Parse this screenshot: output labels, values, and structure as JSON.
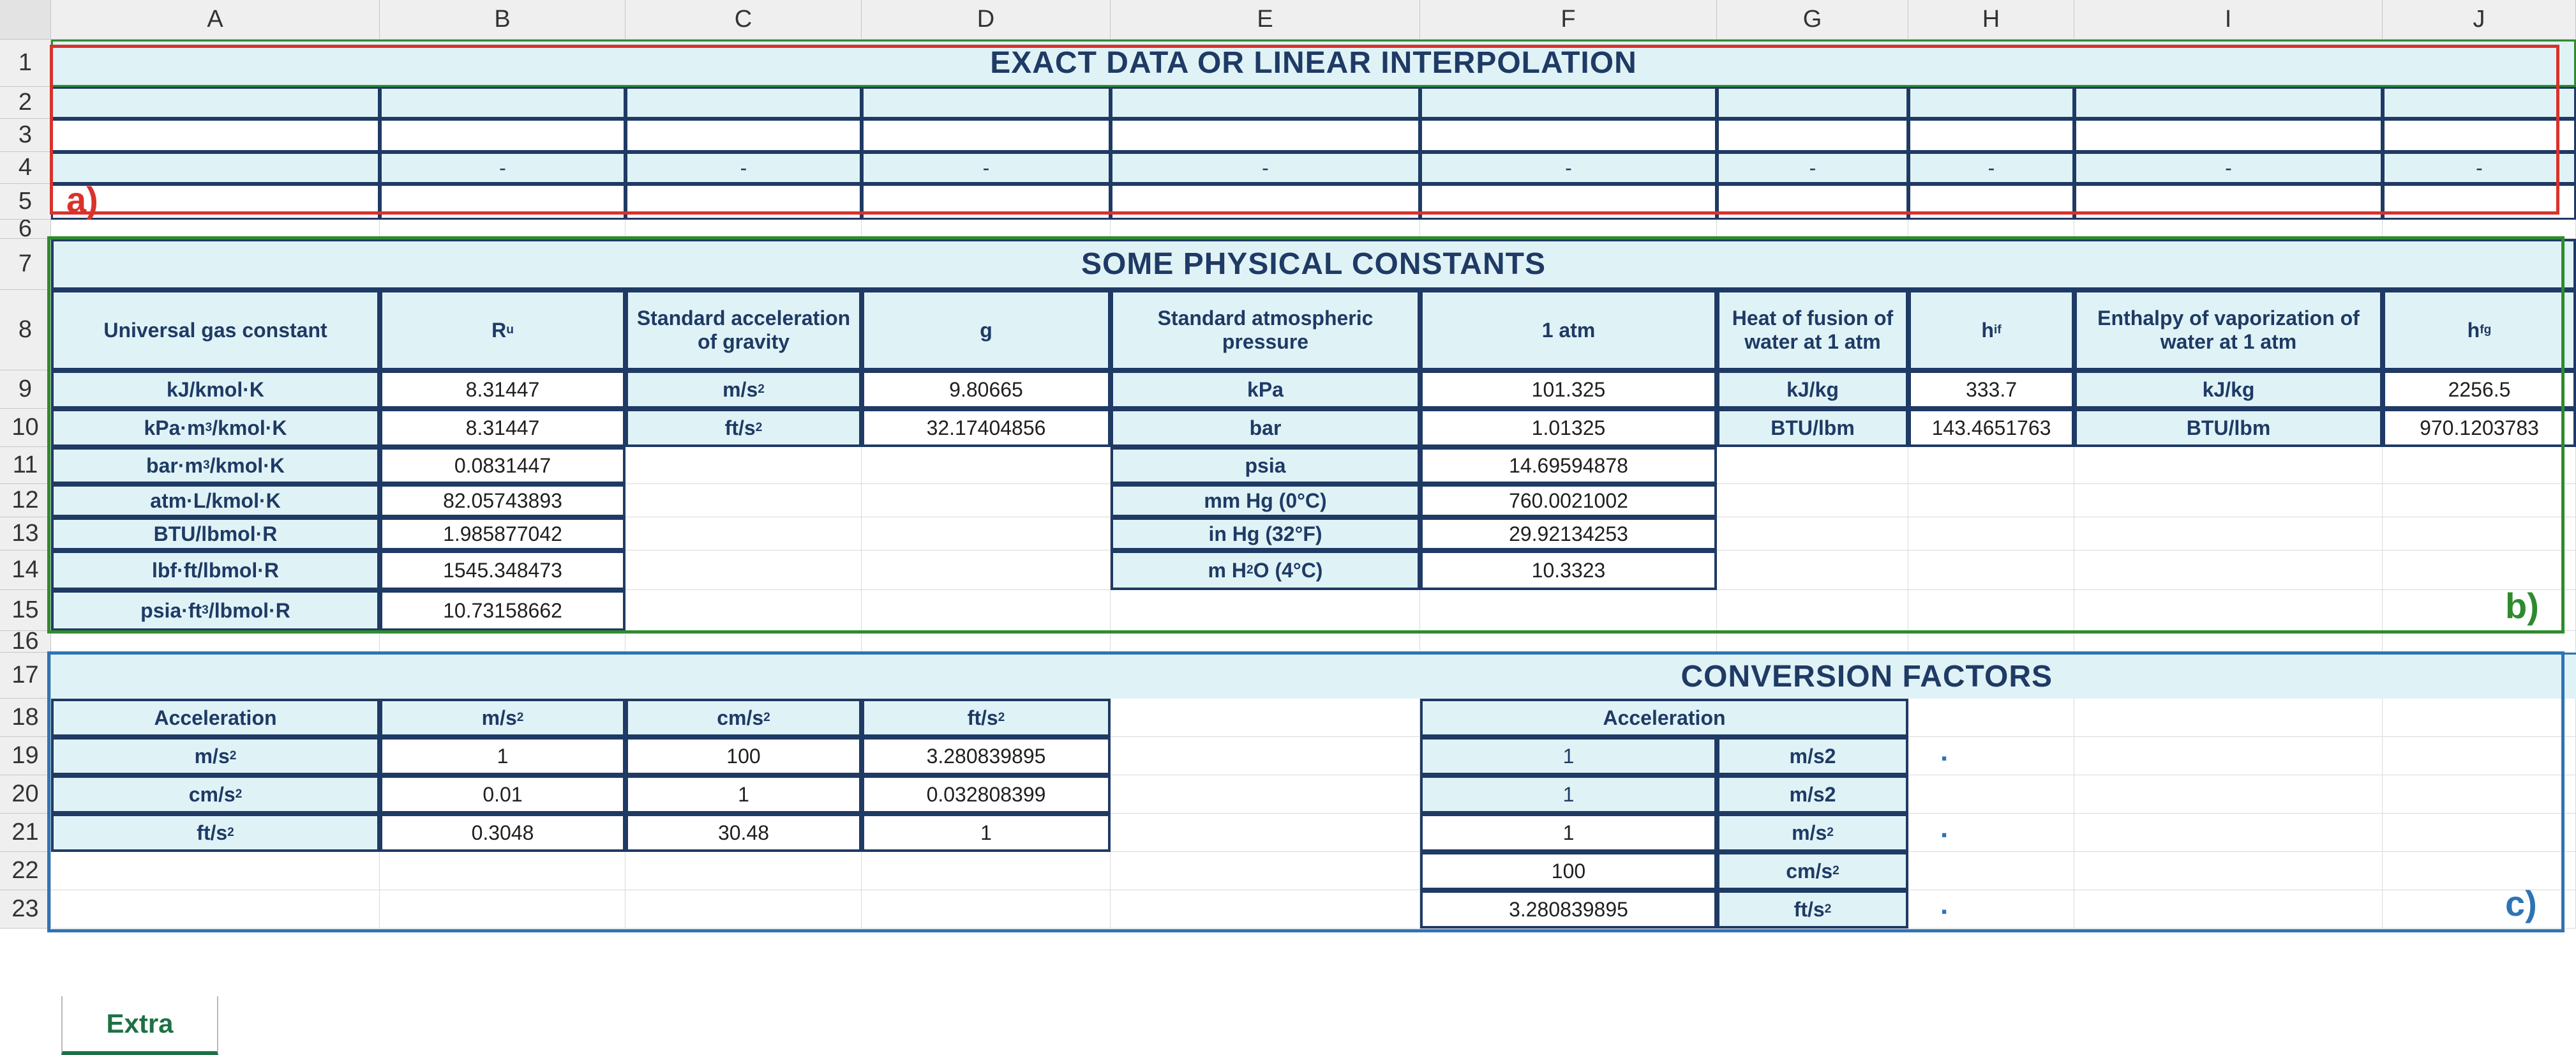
{
  "columns": [
    "A",
    "B",
    "C",
    "D",
    "E",
    "F",
    "G",
    "H",
    "I",
    "J"
  ],
  "rows": [
    "1",
    "2",
    "3",
    "4",
    "5",
    "6",
    "7",
    "8",
    "9",
    "10",
    "11",
    "12",
    "13",
    "14",
    "15",
    "16",
    "17",
    "18",
    "19",
    "20",
    "21",
    "22",
    "23"
  ],
  "section_a": {
    "title": "EXACT DATA OR LINEAR INTERPOLATION",
    "row4_dashes": [
      "-",
      "-",
      "-",
      "-",
      "-",
      "-",
      "-",
      "-",
      "-"
    ],
    "tag": "a)",
    "color": "#d9322b"
  },
  "section_b": {
    "title": "SOME PHYSICAL CONSTANTS",
    "tag": "b)",
    "color": "#2e8b2e",
    "gas": {
      "header_label": "Universal gas constant",
      "header_symbol": "R",
      "header_symbol_sub": "u",
      "rows": [
        {
          "unit": "kJ/kmol·K",
          "value": "8.31447"
        },
        {
          "unit": "kPa·m",
          "unit_sup": "3",
          "unit_tail": "/kmol·K",
          "value": "8.31447"
        },
        {
          "unit": "bar·m",
          "unit_sup": "3",
          "unit_tail": "/kmol·K",
          "value": "0.0831447"
        },
        {
          "unit": "atm·L/kmol·K",
          "value": "82.05743893"
        },
        {
          "unit": "BTU/lbmol·R",
          "value": "1.985877042"
        },
        {
          "unit": "lbf·ft/lbmol·R",
          "value": "1545.348473"
        },
        {
          "unit": "psia·ft",
          "unit_sup": "3",
          "unit_tail": "/lbmol·R",
          "value": "10.73158662"
        }
      ]
    },
    "gravity": {
      "header_label": "Standard acceleration of gravity",
      "header_symbol": "g",
      "rows": [
        {
          "unit": "m/s",
          "unit_sup": "2",
          "value": "9.80665"
        },
        {
          "unit": "ft/s",
          "unit_sup": "2",
          "value": "32.17404856"
        }
      ]
    },
    "atm": {
      "header_label": "Standard atmospheric pressure",
      "header_symbol": "1 atm",
      "rows": [
        {
          "unit": "kPa",
          "value": "101.325"
        },
        {
          "unit": "bar",
          "value": "1.01325"
        },
        {
          "unit": "psia",
          "value": "14.69594878"
        },
        {
          "unit": "mm Hg (0°C)",
          "value": "760.0021002"
        },
        {
          "unit": "in Hg (32°F)",
          "value": "29.92134253"
        },
        {
          "unit": "m H",
          "unit_sub": "2",
          "unit_tail": "O (4°C)",
          "value": "10.3323"
        }
      ]
    },
    "fusion": {
      "header_label": "Heat of fusion of water at 1 atm",
      "header_symbol": "h",
      "header_symbol_sub": "if",
      "rows": [
        {
          "unit": "kJ/kg",
          "value": "333.7"
        },
        {
          "unit": "BTU/lbm",
          "value": "143.4651763"
        }
      ]
    },
    "vaporization": {
      "header_label": "Enthalpy of vaporization of water at 1 atm",
      "header_symbol": "h",
      "header_symbol_sub": "fg",
      "rows": [
        {
          "unit": "kJ/kg",
          "value": "2256.5"
        },
        {
          "unit": "BTU/lbm",
          "value": "970.1203783"
        }
      ]
    }
  },
  "section_c": {
    "title": "CONVERSION FACTORS",
    "tag": "c)",
    "color": "#2e74b5",
    "table": {
      "corner": "Acceleration",
      "col_headers": [
        {
          "t": "m/s",
          "sup": "2"
        },
        {
          "t": "cm/s",
          "sup": "2"
        },
        {
          "t": "ft/s",
          "sup": "2"
        }
      ],
      "rows": [
        {
          "label": {
            "t": "m/s",
            "sup": "2"
          },
          "values": [
            "1",
            "100",
            "3.280839895"
          ]
        },
        {
          "label": {
            "t": "cm/s",
            "sup": "2"
          },
          "values": [
            "0.01",
            "1",
            "0.032808399"
          ]
        },
        {
          "label": {
            "t": "ft/s",
            "sup": "2"
          },
          "values": [
            "0.3048",
            "30.48",
            "1"
          ]
        }
      ]
    },
    "converter": {
      "header": "Acceleration",
      "rows": [
        {
          "value": "1",
          "unit": "m/s2"
        },
        {
          "value": "1",
          "unit": "m/s2"
        },
        {
          "value": "1",
          "unit": "m/s",
          "unit_sup": "2"
        },
        {
          "value": "100",
          "unit": "cm/s",
          "unit_sup": "2"
        },
        {
          "value": "3.280839895",
          "unit": "ft/s",
          "unit_sup": "2"
        }
      ],
      "dots": [
        ".",
        ".",
        "."
      ]
    }
  },
  "sheet_tab": "Extra"
}
